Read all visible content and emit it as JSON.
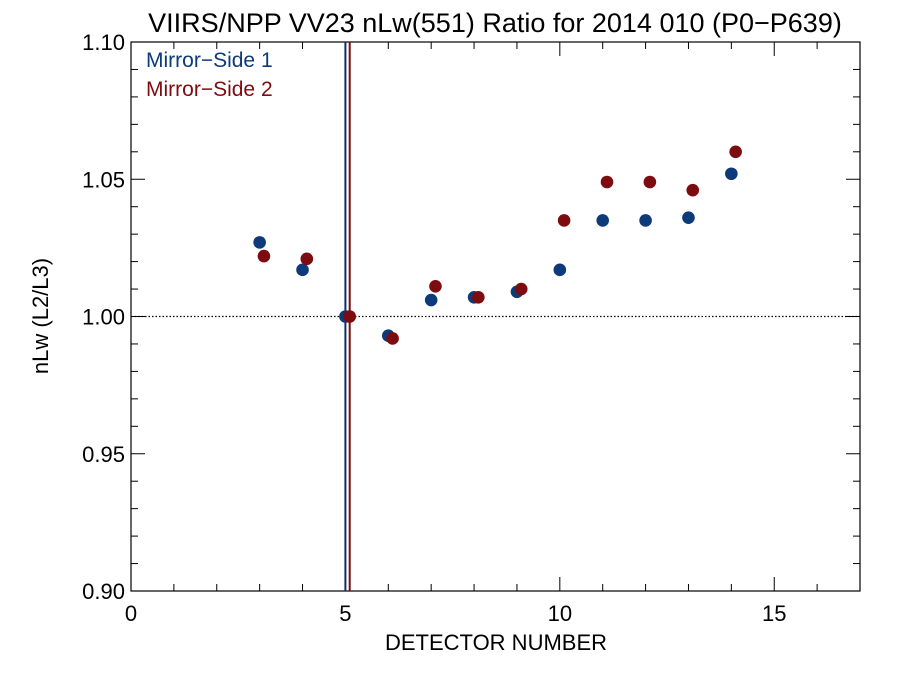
{
  "chart_data": {
    "type": "scatter",
    "title": "VIIRS/NPP VV23 nLw(551) Ratio for 2014 010 (P0−P639)",
    "xlabel": "DETECTOR NUMBER",
    "ylabel": "nLw (L2/L3)",
    "xlim": [
      0,
      17
    ],
    "ylim": [
      0.9,
      1.1
    ],
    "x_ticks": [
      0,
      5,
      10,
      15
    ],
    "x_tick_labels": [
      "0",
      "5",
      "10",
      "15"
    ],
    "y_ticks": [
      0.9,
      0.95,
      1.0,
      1.05,
      1.1
    ],
    "y_tick_labels": [
      "0.90",
      "0.95",
      "1.00",
      "1.05",
      "1.10"
    ],
    "x_minor_step": 1,
    "y_minor_step": 0.01,
    "reference_line_y": 1.0,
    "reference_vlines": [
      {
        "x": 5.0,
        "color": "#0d2f6b"
      },
      {
        "x": 5.1,
        "color": "#7a0d12"
      }
    ],
    "legend_position": "top-left",
    "series": [
      {
        "name": "Mirror−Side 1",
        "color": "#0d3a78",
        "x": [
          3,
          4,
          5,
          6,
          7,
          8,
          9,
          10,
          11,
          12,
          13,
          14
        ],
        "values": [
          1.027,
          1.017,
          1.0,
          0.993,
          1.006,
          1.007,
          1.009,
          1.017,
          1.035,
          1.035,
          1.036,
          1.052
        ]
      },
      {
        "name": "Mirror−Side 2",
        "color": "#7d0c10",
        "x": [
          3.1,
          4.1,
          5.1,
          6.1,
          7.1,
          8.1,
          9.1,
          10.1,
          11.1,
          12.1,
          13.1,
          14.1
        ],
        "values": [
          1.022,
          1.021,
          1.0,
          0.992,
          1.011,
          1.007,
          1.01,
          1.035,
          1.049,
          1.049,
          1.046,
          1.06
        ]
      }
    ]
  }
}
